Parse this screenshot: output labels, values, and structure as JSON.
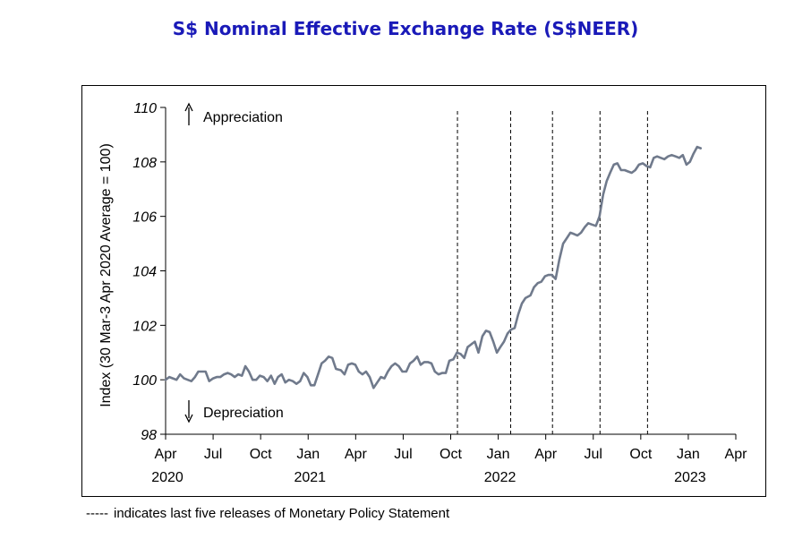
{
  "chart_data": {
    "type": "line",
    "title": "S$ Nominal Effective Exchange Rate (S$NEER)",
    "ylabel": "Index (30 Mar-3 Apr 2020 Average = 100)",
    "xlabel": "",
    "ylim": [
      98,
      110
    ],
    "yticks": [
      98,
      100,
      102,
      104,
      106,
      108,
      110
    ],
    "x_range_months": [
      "2020-04",
      "2023-04"
    ],
    "xticks": [
      {
        "date": "2020-04",
        "label": "Apr",
        "year": "2020"
      },
      {
        "date": "2020-07",
        "label": "Jul",
        "year": ""
      },
      {
        "date": "2020-10",
        "label": "Oct",
        "year": ""
      },
      {
        "date": "2021-01",
        "label": "Jan",
        "year": "2021"
      },
      {
        "date": "2021-04",
        "label": "Apr",
        "year": ""
      },
      {
        "date": "2021-07",
        "label": "Jul",
        "year": ""
      },
      {
        "date": "2021-10",
        "label": "Oct",
        "year": ""
      },
      {
        "date": "2022-01",
        "label": "Jan",
        "year": "2022"
      },
      {
        "date": "2022-04",
        "label": "Apr",
        "year": ""
      },
      {
        "date": "2022-07",
        "label": "Jul",
        "year": ""
      },
      {
        "date": "2022-10",
        "label": "Oct",
        "year": ""
      },
      {
        "date": "2023-01",
        "label": "Jan",
        "year": "2023"
      },
      {
        "date": "2023-04",
        "label": "Apr",
        "year": ""
      }
    ],
    "vlines": [
      "2021-10-14",
      "2022-01-25",
      "2022-04-14",
      "2022-07-14",
      "2022-10-14"
    ],
    "annotations": {
      "appreciation": "Appreciation",
      "depreciation": "Depreciation"
    },
    "footnote": "indicates last five releases of Monetary Policy Statement",
    "footnote_dash": "-----",
    "series": [
      {
        "color": "#707a8c",
        "points": [
          [
            "2020-04-01",
            100.0
          ],
          [
            "2020-04-08",
            100.1
          ],
          [
            "2020-04-15",
            100.05
          ],
          [
            "2020-04-22",
            100.0
          ],
          [
            "2020-04-29",
            100.2
          ],
          [
            "2020-05-06",
            100.05
          ],
          [
            "2020-05-13",
            100.0
          ],
          [
            "2020-05-20",
            99.95
          ],
          [
            "2020-05-27",
            100.1
          ],
          [
            "2020-06-03",
            100.3
          ],
          [
            "2020-06-10",
            100.3
          ],
          [
            "2020-06-17",
            100.3
          ],
          [
            "2020-06-24",
            99.95
          ],
          [
            "2020-07-01",
            100.05
          ],
          [
            "2020-07-08",
            100.1
          ],
          [
            "2020-07-15",
            100.1
          ],
          [
            "2020-07-22",
            100.2
          ],
          [
            "2020-07-29",
            100.25
          ],
          [
            "2020-08-05",
            100.2
          ],
          [
            "2020-08-12",
            100.1
          ],
          [
            "2020-08-19",
            100.2
          ],
          [
            "2020-08-26",
            100.15
          ],
          [
            "2020-09-02",
            100.5
          ],
          [
            "2020-09-09",
            100.3
          ],
          [
            "2020-09-16",
            100.0
          ],
          [
            "2020-09-23",
            100.0
          ],
          [
            "2020-09-30",
            100.15
          ],
          [
            "2020-10-07",
            100.1
          ],
          [
            "2020-10-14",
            99.95
          ],
          [
            "2020-10-21",
            100.15
          ],
          [
            "2020-10-28",
            99.85
          ],
          [
            "2020-11-04",
            100.1
          ],
          [
            "2020-11-11",
            100.2
          ],
          [
            "2020-11-18",
            99.9
          ],
          [
            "2020-11-25",
            100.0
          ],
          [
            "2020-12-02",
            99.95
          ],
          [
            "2020-12-09",
            99.85
          ],
          [
            "2020-12-16",
            99.95
          ],
          [
            "2020-12-23",
            100.25
          ],
          [
            "2020-12-30",
            100.1
          ],
          [
            "2021-01-06",
            99.8
          ],
          [
            "2021-01-13",
            99.8
          ],
          [
            "2021-01-20",
            100.2
          ],
          [
            "2021-01-27",
            100.6
          ],
          [
            "2021-02-03",
            100.7
          ],
          [
            "2021-02-10",
            100.85
          ],
          [
            "2021-02-17",
            100.8
          ],
          [
            "2021-02-24",
            100.4
          ],
          [
            "2021-03-03",
            100.35
          ],
          [
            "2021-03-10",
            100.2
          ],
          [
            "2021-03-17",
            100.55
          ],
          [
            "2021-03-24",
            100.6
          ],
          [
            "2021-03-31",
            100.55
          ],
          [
            "2021-04-07",
            100.3
          ],
          [
            "2021-04-14",
            100.2
          ],
          [
            "2021-04-21",
            100.3
          ],
          [
            "2021-04-28",
            100.1
          ],
          [
            "2021-05-05",
            99.7
          ],
          [
            "2021-05-12",
            99.9
          ],
          [
            "2021-05-19",
            100.1
          ],
          [
            "2021-05-26",
            100.05
          ],
          [
            "2021-06-02",
            100.3
          ],
          [
            "2021-06-09",
            100.5
          ],
          [
            "2021-06-16",
            100.6
          ],
          [
            "2021-06-23",
            100.5
          ],
          [
            "2021-06-30",
            100.3
          ],
          [
            "2021-07-07",
            100.3
          ],
          [
            "2021-07-14",
            100.6
          ],
          [
            "2021-07-21",
            100.7
          ],
          [
            "2021-07-28",
            100.85
          ],
          [
            "2021-08-04",
            100.55
          ],
          [
            "2021-08-11",
            100.65
          ],
          [
            "2021-08-18",
            100.65
          ],
          [
            "2021-08-25",
            100.6
          ],
          [
            "2021-09-01",
            100.3
          ],
          [
            "2021-09-08",
            100.2
          ],
          [
            "2021-09-15",
            100.25
          ],
          [
            "2021-09-22",
            100.25
          ],
          [
            "2021-09-29",
            100.7
          ],
          [
            "2021-10-06",
            100.75
          ],
          [
            "2021-10-13",
            101.0
          ],
          [
            "2021-10-20",
            100.95
          ],
          [
            "2021-10-27",
            100.8
          ],
          [
            "2021-11-03",
            101.2
          ],
          [
            "2021-11-10",
            101.3
          ],
          [
            "2021-11-17",
            101.4
          ],
          [
            "2021-11-24",
            101.0
          ],
          [
            "2021-12-01",
            101.6
          ],
          [
            "2021-12-08",
            101.8
          ],
          [
            "2021-12-15",
            101.75
          ],
          [
            "2021-12-22",
            101.4
          ],
          [
            "2021-12-29",
            101.0
          ],
          [
            "2022-01-05",
            101.2
          ],
          [
            "2022-01-12",
            101.4
          ],
          [
            "2022-01-19",
            101.7
          ],
          [
            "2022-01-26",
            101.85
          ],
          [
            "2022-02-02",
            101.9
          ],
          [
            "2022-02-09",
            102.4
          ],
          [
            "2022-02-16",
            102.8
          ],
          [
            "2022-02-23",
            103.0
          ],
          [
            "2022-03-02",
            103.1
          ],
          [
            "2022-03-09",
            103.4
          ],
          [
            "2022-03-16",
            103.55
          ],
          [
            "2022-03-23",
            103.6
          ],
          [
            "2022-03-30",
            103.8
          ],
          [
            "2022-04-06",
            103.85
          ],
          [
            "2022-04-13",
            103.85
          ],
          [
            "2022-04-20",
            103.7
          ],
          [
            "2022-04-27",
            104.4
          ],
          [
            "2022-05-04",
            105.0
          ],
          [
            "2022-05-11",
            105.2
          ],
          [
            "2022-05-18",
            105.4
          ],
          [
            "2022-05-25",
            105.35
          ],
          [
            "2022-06-01",
            105.3
          ],
          [
            "2022-06-08",
            105.4
          ],
          [
            "2022-06-15",
            105.6
          ],
          [
            "2022-06-22",
            105.75
          ],
          [
            "2022-06-29",
            105.7
          ],
          [
            "2022-07-06",
            105.65
          ],
          [
            "2022-07-13",
            106.0
          ],
          [
            "2022-07-20",
            106.8
          ],
          [
            "2022-07-27",
            107.3
          ],
          [
            "2022-08-03",
            107.6
          ],
          [
            "2022-08-10",
            107.9
          ],
          [
            "2022-08-17",
            107.95
          ],
          [
            "2022-08-24",
            107.7
          ],
          [
            "2022-08-31",
            107.7
          ],
          [
            "2022-09-07",
            107.65
          ],
          [
            "2022-09-14",
            107.6
          ],
          [
            "2022-09-21",
            107.7
          ],
          [
            "2022-09-28",
            107.9
          ],
          [
            "2022-10-05",
            107.95
          ],
          [
            "2022-10-12",
            107.85
          ],
          [
            "2022-10-19",
            107.8
          ],
          [
            "2022-10-26",
            108.15
          ],
          [
            "2022-11-02",
            108.2
          ],
          [
            "2022-11-09",
            108.15
          ],
          [
            "2022-11-16",
            108.1
          ],
          [
            "2022-11-23",
            108.2
          ],
          [
            "2022-11-30",
            108.25
          ],
          [
            "2022-12-07",
            108.2
          ],
          [
            "2022-12-14",
            108.15
          ],
          [
            "2022-12-21",
            108.25
          ],
          [
            "2022-12-28",
            107.9
          ],
          [
            "2023-01-04",
            108.0
          ],
          [
            "2023-01-11",
            108.3
          ],
          [
            "2023-01-18",
            108.55
          ],
          [
            "2023-01-25",
            108.5
          ]
        ]
      }
    ]
  }
}
